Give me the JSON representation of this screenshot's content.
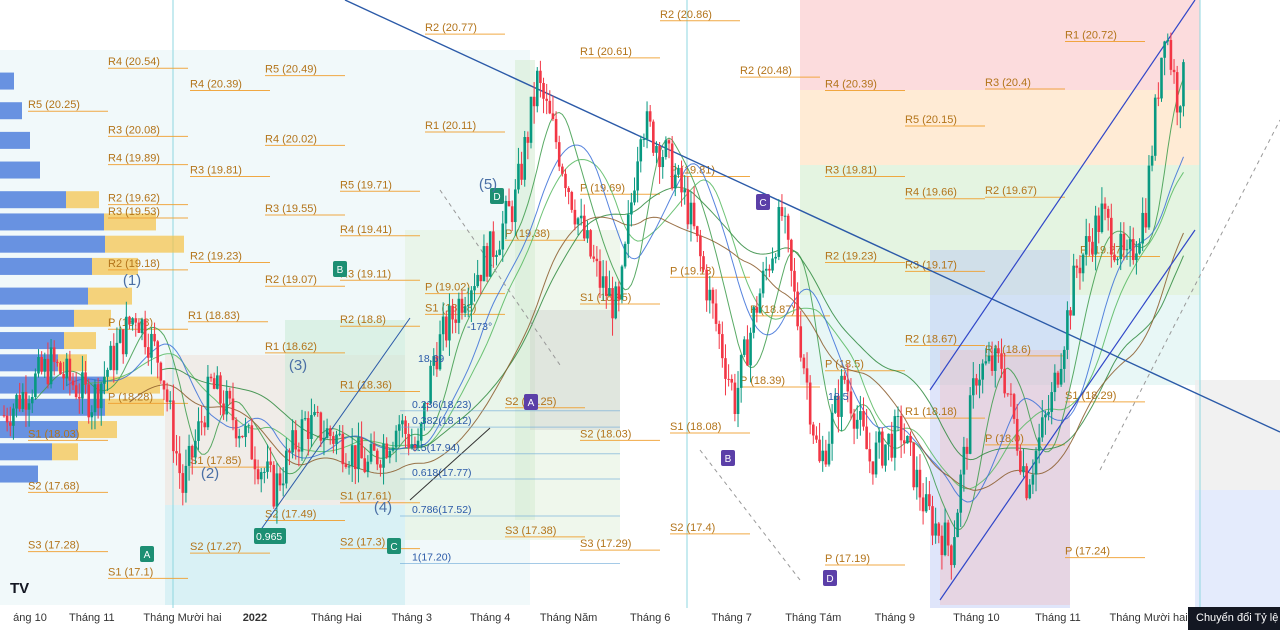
{
  "chart_data": {
    "type": "candlestick",
    "title": "",
    "xlabel": "",
    "ylabel": "",
    "ylim": [
      16.9,
      21.0
    ],
    "x_axis_ticks": [
      {
        "label": "áng 10",
        "i": 3
      },
      {
        "label": "Tháng 11",
        "i": 28
      },
      {
        "label": "Tháng Mười hai",
        "i": 54
      },
      {
        "label": "2022",
        "i": 80
      },
      {
        "label": "Tháng Hai",
        "i": 106
      },
      {
        "label": "Tháng 3",
        "i": 130
      },
      {
        "label": "Tháng 4",
        "i": 155
      },
      {
        "label": "Tháng Năm",
        "i": 180
      },
      {
        "label": "Tháng 6",
        "i": 206
      },
      {
        "label": "Tháng 7",
        "i": 232
      },
      {
        "label": "Tháng Tám",
        "i": 258
      },
      {
        "label": "Tháng 9",
        "i": 284
      },
      {
        "label": "Tháng 10",
        "i": 310
      },
      {
        "label": "Tháng 11",
        "i": 336
      },
      {
        "label": "Tháng Mười hai",
        "i": 362
      }
    ],
    "price_path": [
      [
        0,
        18.2
      ],
      [
        15,
        18.55
      ],
      [
        28,
        18.3
      ],
      [
        42,
        18.9
      ],
      [
        50,
        18.55
      ],
      [
        57,
        17.7
      ],
      [
        66,
        18.4
      ],
      [
        76,
        18.1
      ],
      [
        86,
        17.7
      ],
      [
        96,
        18.15
      ],
      [
        106,
        18.05
      ],
      [
        116,
        17.85
      ],
      [
        126,
        18.15
      ],
      [
        132,
        17.95
      ],
      [
        137,
        18.6
      ],
      [
        147,
        19.05
      ],
      [
        155,
        19.3
      ],
      [
        163,
        19.65
      ],
      [
        170,
        20.45
      ],
      [
        176,
        20.05
      ],
      [
        184,
        19.45
      ],
      [
        190,
        19.1
      ],
      [
        196,
        18.9
      ],
      [
        203,
        20.2
      ],
      [
        211,
        19.95
      ],
      [
        218,
        19.6
      ],
      [
        226,
        18.9
      ],
      [
        233,
        18.3
      ],
      [
        240,
        18.95
      ],
      [
        248,
        19.55
      ],
      [
        254,
        18.7
      ],
      [
        260,
        17.85
      ],
      [
        268,
        18.45
      ],
      [
        276,
        17.9
      ],
      [
        286,
        18.1
      ],
      [
        294,
        17.55
      ],
      [
        302,
        17.3
      ],
      [
        310,
        18.5
      ],
      [
        318,
        18.55
      ],
      [
        326,
        17.75
      ],
      [
        334,
        18.3
      ],
      [
        342,
        19.2
      ],
      [
        350,
        19.55
      ],
      [
        358,
        19.2
      ],
      [
        364,
        19.6
      ],
      [
        370,
        20.85
      ],
      [
        374,
        20.35
      ],
      [
        376,
        20.45
      ]
    ],
    "pivot_levels": [
      {
        "label": "R5 (20.25)",
        "value": 20.25
      },
      {
        "label": "R4 (19.89)",
        "value": 19.89
      },
      {
        "label": "R3 (19.53)",
        "value": 19.53
      },
      {
        "label": "R2 (19.18)",
        "value": 19.18
      },
      {
        "label": "P (18.78)",
        "value": 18.78
      },
      {
        "label": "S1 (18.03)",
        "value": 18.03
      },
      {
        "label": "R4 (20.54)",
        "value": 20.54
      },
      {
        "label": "R3 (20.08)",
        "value": 20.08
      },
      {
        "label": "R2 (19.62)",
        "value": 19.62
      },
      {
        "label": "R1 (18.83)",
        "value": 18.83
      },
      {
        "label": "P (18.28)",
        "value": 18.28
      },
      {
        "label": "S2 (17.68)",
        "value": 17.68
      },
      {
        "label": "S1 (17.1)",
        "value": 17.1
      },
      {
        "label": "S3 (17.28)",
        "value": 17.28
      },
      {
        "label": "R4 (20.39)",
        "value": 20.39
      },
      {
        "label": "R3 (19.81)",
        "value": 19.81
      },
      {
        "label": "R2 (19.23)",
        "value": 19.23
      },
      {
        "label": "S1 (17.85)",
        "value": 17.85
      },
      {
        "label": "S2 (17.27)",
        "value": 17.27
      },
      {
        "label": "R5 (20.49)",
        "value": 20.49
      },
      {
        "label": "R4 (20.02)",
        "value": 20.02
      },
      {
        "label": "R3 (19.55)",
        "value": 19.55
      },
      {
        "label": "R2 (19.07)",
        "value": 19.07
      },
      {
        "label": "R1 (18.62)",
        "value": 18.62
      },
      {
        "label": "S2 (17.49)",
        "value": 17.49
      },
      {
        "label": "R5 (19.71)",
        "value": 19.71
      },
      {
        "label": "R4 (19.41)",
        "value": 19.41
      },
      {
        "label": "R3 (19.11)",
        "value": 19.11
      },
      {
        "label": "R2 (18.8)",
        "value": 18.8
      },
      {
        "label": "R1 (18.36)",
        "value": 18.36
      },
      {
        "label": "S1 (17.61)",
        "value": 17.61
      },
      {
        "label": "S2 (17.3)",
        "value": 17.3
      },
      {
        "label": "R2 (20.77)",
        "value": 20.77
      },
      {
        "label": "R1 (20.11)",
        "value": 20.11
      },
      {
        "label": "P (19.02)",
        "value": 19.02
      },
      {
        "label": "S1 (18.88)",
        "value": 18.88
      },
      {
        "label": "S2 (18.25)",
        "value": 18.25
      },
      {
        "label": "S3 (17.38)",
        "value": 17.38
      },
      {
        "label": "P (19.38)",
        "value": 19.38
      },
      {
        "label": "R1 (20.61)",
        "value": 20.61
      },
      {
        "label": "P (19.69)",
        "value": 19.69
      },
      {
        "label": "S1 (18.95)",
        "value": 18.95
      },
      {
        "label": "S2 (18.03)",
        "value": 18.03
      },
      {
        "label": "S3 (17.29)",
        "value": 17.29
      },
      {
        "label": "R2 (20.86)",
        "value": 20.86
      },
      {
        "label": "R2 (20.48)",
        "value": 20.48
      },
      {
        "label": "P (19.81)",
        "value": 19.81
      },
      {
        "label": "P (19.13)",
        "value": 19.13
      },
      {
        "label": "S1 (18.08)",
        "value": 18.08
      },
      {
        "label": "S2 (17.4)",
        "value": 17.4
      },
      {
        "label": "P (18.87)",
        "value": 18.87
      },
      {
        "label": "P (18.39)",
        "value": 18.39
      },
      {
        "label": "R4 (20.39)",
        "value": 20.39
      },
      {
        "label": "R3 (19.81)",
        "value": 19.81
      },
      {
        "label": "R2 (19.23)",
        "value": 19.23
      },
      {
        "label": "P (18.5)",
        "value": 18.5
      },
      {
        "label": "P (17.19)",
        "value": 17.19
      },
      {
        "label": "R5 (20.15)",
        "value": 20.15
      },
      {
        "label": "R4 (19.66)",
        "value": 19.66
      },
      {
        "label": "R2 (19.67)",
        "value": 19.67
      },
      {
        "label": "R3 (19.17)",
        "value": 19.17
      },
      {
        "label": "R2 (18.67)",
        "value": 18.67
      },
      {
        "label": "R1 (18.18)",
        "value": 18.18
      },
      {
        "label": "P (18.0)",
        "value": 18.0
      },
      {
        "label": "R1 (18.6)",
        "value": 18.6
      },
      {
        "label": "R1 (20.72)",
        "value": 20.72
      },
      {
        "label": "R3 (20.4)",
        "value": 20.4
      },
      {
        "label": "P (19.27)",
        "value": 19.27
      },
      {
        "label": "S1 (18.29)",
        "value": 18.29
      },
      {
        "label": "P (17.24)",
        "value": 17.24
      }
    ],
    "fib_levels": [
      {
        "label": "0.236(18.23)",
        "value": 18.23
      },
      {
        "label": "0.382(18.12)",
        "value": 18.12
      },
      {
        "label": "0.5(17.94)",
        "value": 17.94
      },
      {
        "label": "0.618(17.77)",
        "value": 17.77
      },
      {
        "label": "0.786(17.52)",
        "value": 17.52
      },
      {
        "label": "1(17.20)",
        "value": 17.2
      }
    ],
    "wave_labels": [
      "(1)",
      "(2)",
      "(3)",
      "(4)",
      "(5)"
    ],
    "pattern_points": [
      "A",
      "B",
      "C",
      "D"
    ],
    "annotations": [
      "0.965",
      "-173°",
      "18.69",
      "18.5"
    ],
    "volume_profile": [
      {
        "value": 20.45,
        "vol": 14
      },
      {
        "value": 20.25,
        "vol": 22
      },
      {
        "value": 20.05,
        "vol": 30
      },
      {
        "value": 19.85,
        "vol": 40
      },
      {
        "value": 19.65,
        "vol": 66
      },
      {
        "value": 19.5,
        "vol": 104
      },
      {
        "value": 19.35,
        "vol": 158
      },
      {
        "value": 19.2,
        "vol": 92
      },
      {
        "value": 19.0,
        "vol": 88
      },
      {
        "value": 18.85,
        "vol": 74
      },
      {
        "value": 18.7,
        "vol": 64
      },
      {
        "value": 18.55,
        "vol": 58
      },
      {
        "value": 18.4,
        "vol": 110
      },
      {
        "value": 18.25,
        "vol": 118
      },
      {
        "value": 18.1,
        "vol": 78
      },
      {
        "value": 17.95,
        "vol": 52
      },
      {
        "value": 17.8,
        "vol": 38
      }
    ]
  },
  "ui": {
    "convert_button_label": "Chuyển đổi Tỷ lệ thang",
    "logo_text": "TV",
    "colors": {
      "up": "#089981",
      "down": "#f23645",
      "level": "#f0a030",
      "trend": "#2b5aa8",
      "pattern": "#5b3fa8"
    }
  }
}
